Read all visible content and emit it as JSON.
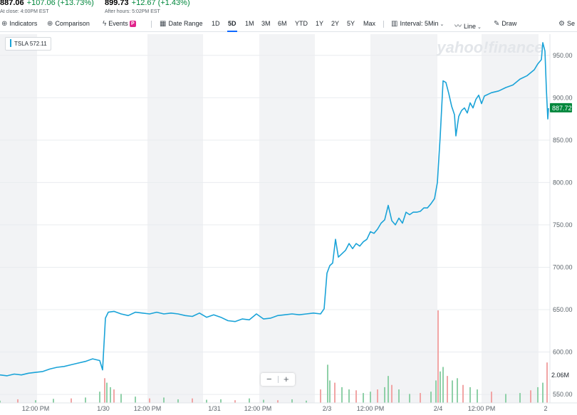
{
  "quote": {
    "close_price": "887.06",
    "close_change": "+107.06 (+13.73%)",
    "close_note": "At close: 4:00PM EST",
    "after_price": "899.73",
    "after_change": "+12.67 (+1.43%)",
    "after_note": "After hours: 5:02PM EST"
  },
  "toolbar": {
    "indicators": "Indicators",
    "comparison": "Comparison",
    "events": "Events",
    "events_badge": "P",
    "date_range": "Date Range",
    "ranges": [
      "1D",
      "5D",
      "1M",
      "3M",
      "6M",
      "YTD",
      "1Y",
      "2Y",
      "5Y",
      "Max"
    ],
    "active_range": "5D",
    "interval": "Interval: 5Min",
    "chart_type": "Line",
    "draw": "Draw",
    "settings": "Se"
  },
  "legend": {
    "symbol": "TSLA",
    "value": "572.11"
  },
  "watermark": "yahoo!finance",
  "chart_data": {
    "type": "line",
    "ylim": [
      540,
      975
    ],
    "y_ticks": [
      550,
      600,
      650,
      700,
      750,
      800,
      850,
      900,
      950
    ],
    "y_tick_labels": [
      "550.00",
      "600.00",
      "650.00",
      "700.00",
      "750.00",
      "800.00",
      "850.00",
      "900.00",
      "950.00"
    ],
    "x_tick_labels": [
      "12:00 PM",
      "1/30",
      "12:00 PM",
      "1/31",
      "12:00 PM",
      "2/3",
      "12:00 PM",
      "2/4",
      "12:00 PM",
      "2"
    ],
    "last_price_label": "887.72",
    "volume_label": "2.06M",
    "colors": {
      "line": "#1aa3d8",
      "last_price": "#00873c",
      "volume_up": "#8fd0a8",
      "volume_down": "#f1a5a5"
    },
    "series": [
      {
        "values": [
          [
            0,
            573
          ],
          [
            10,
            572
          ],
          [
            20,
            574
          ],
          [
            30,
            573
          ],
          [
            40,
            575
          ],
          [
            50,
            576
          ],
          [
            60,
            577
          ],
          [
            70,
            580
          ],
          [
            80,
            582
          ],
          [
            90,
            583
          ],
          [
            100,
            585
          ],
          [
            110,
            587
          ],
          [
            120,
            589
          ],
          [
            130,
            592
          ],
          [
            140,
            590
          ],
          [
            144,
            579
          ],
          [
            148,
            640
          ],
          [
            152,
            647
          ],
          [
            160,
            648
          ],
          [
            170,
            645
          ],
          [
            180,
            643
          ],
          [
            190,
            647
          ],
          [
            200,
            646
          ],
          [
            210,
            645
          ],
          [
            220,
            647
          ],
          [
            230,
            645
          ],
          [
            240,
            646
          ],
          [
            250,
            645
          ],
          [
            260,
            643
          ],
          [
            270,
            642
          ],
          [
            280,
            646
          ],
          [
            290,
            641
          ],
          [
            300,
            644
          ],
          [
            310,
            641
          ],
          [
            320,
            637
          ],
          [
            330,
            636
          ],
          [
            340,
            639
          ],
          [
            350,
            638
          ],
          [
            360,
            645
          ],
          [
            370,
            639
          ],
          [
            380,
            640
          ],
          [
            390,
            643
          ],
          [
            400,
            644
          ],
          [
            410,
            645
          ],
          [
            420,
            644
          ],
          [
            430,
            645
          ],
          [
            440,
            646
          ],
          [
            450,
            645
          ],
          [
            455,
            651
          ],
          [
            459,
            693
          ],
          [
            463,
            702
          ],
          [
            467,
            705
          ],
          [
            471,
            733
          ],
          [
            475,
            712
          ],
          [
            480,
            716
          ],
          [
            485,
            720
          ],
          [
            490,
            728
          ],
          [
            495,
            722
          ],
          [
            500,
            728
          ],
          [
            505,
            725
          ],
          [
            510,
            730
          ],
          [
            515,
            733
          ],
          [
            520,
            742
          ],
          [
            525,
            740
          ],
          [
            530,
            745
          ],
          [
            535,
            752
          ],
          [
            540,
            756
          ],
          [
            545,
            773
          ],
          [
            550,
            755
          ],
          [
            555,
            750
          ],
          [
            560,
            758
          ],
          [
            565,
            752
          ],
          [
            570,
            765
          ],
          [
            575,
            762
          ],
          [
            580,
            765
          ],
          [
            585,
            765
          ],
          [
            590,
            766
          ],
          [
            595,
            770
          ],
          [
            600,
            770
          ],
          [
            605,
            775
          ],
          [
            610,
            781
          ],
          [
            614,
            800
          ],
          [
            618,
            855
          ],
          [
            622,
            920
          ],
          [
            626,
            918
          ],
          [
            630,
            905
          ],
          [
            634,
            890
          ],
          [
            638,
            880
          ],
          [
            640,
            855
          ],
          [
            644,
            878
          ],
          [
            648,
            885
          ],
          [
            652,
            888
          ],
          [
            656,
            882
          ],
          [
            660,
            894
          ],
          [
            664,
            888
          ],
          [
            668,
            898
          ],
          [
            672,
            903
          ],
          [
            676,
            893
          ],
          [
            680,
            902
          ],
          [
            690,
            906
          ],
          [
            700,
            908
          ],
          [
            710,
            912
          ],
          [
            720,
            915
          ],
          [
            730,
            922
          ],
          [
            740,
            926
          ],
          [
            750,
            933
          ],
          [
            755,
            940
          ],
          [
            760,
            945
          ],
          [
            762,
            965
          ],
          [
            765,
            955
          ],
          [
            767,
            910
          ],
          [
            769,
            875
          ],
          [
            770,
            887.72
          ]
        ]
      }
    ],
    "volume": [
      [
        0,
        0.05
      ],
      [
        25,
        0.08
      ],
      [
        50,
        0.06
      ],
      [
        75,
        0.09
      ],
      [
        100,
        0.1
      ],
      [
        120,
        0.12
      ],
      [
        140,
        0.25
      ],
      [
        147,
        0.55
      ],
      [
        150,
        0.45
      ],
      [
        155,
        0.35
      ],
      [
        160,
        0.3
      ],
      [
        170,
        0.2
      ],
      [
        190,
        0.14
      ],
      [
        210,
        0.1
      ],
      [
        230,
        0.12
      ],
      [
        250,
        0.08
      ],
      [
        270,
        0.1
      ],
      [
        290,
        0.07
      ],
      [
        310,
        0.08
      ],
      [
        330,
        0.06
      ],
      [
        350,
        0.1
      ],
      [
        370,
        0.07
      ],
      [
        390,
        0.06
      ],
      [
        410,
        0.08
      ],
      [
        430,
        0.05
      ],
      [
        450,
        0.3
      ],
      [
        460,
        0.85
      ],
      [
        463,
        0.5
      ],
      [
        470,
        0.45
      ],
      [
        480,
        0.35
      ],
      [
        490,
        0.3
      ],
      [
        500,
        0.28
      ],
      [
        510,
        0.22
      ],
      [
        520,
        0.25
      ],
      [
        530,
        0.3
      ],
      [
        540,
        0.35
      ],
      [
        545,
        0.6
      ],
      [
        550,
        0.4
      ],
      [
        560,
        0.3
      ],
      [
        575,
        0.2
      ],
      [
        590,
        0.22
      ],
      [
        605,
        0.25
      ],
      [
        612,
        0.5
      ],
      [
        615,
        2.06
      ],
      [
        618,
        0.7
      ],
      [
        622,
        0.8
      ],
      [
        628,
        0.6
      ],
      [
        635,
        0.5
      ],
      [
        642,
        0.55
      ],
      [
        650,
        0.4
      ],
      [
        660,
        0.35
      ],
      [
        670,
        0.3
      ],
      [
        690,
        0.25
      ],
      [
        710,
        0.2
      ],
      [
        730,
        0.22
      ],
      [
        745,
        0.28
      ],
      [
        755,
        0.35
      ],
      [
        762,
        0.45
      ],
      [
        768,
        0.9
      ]
    ]
  }
}
